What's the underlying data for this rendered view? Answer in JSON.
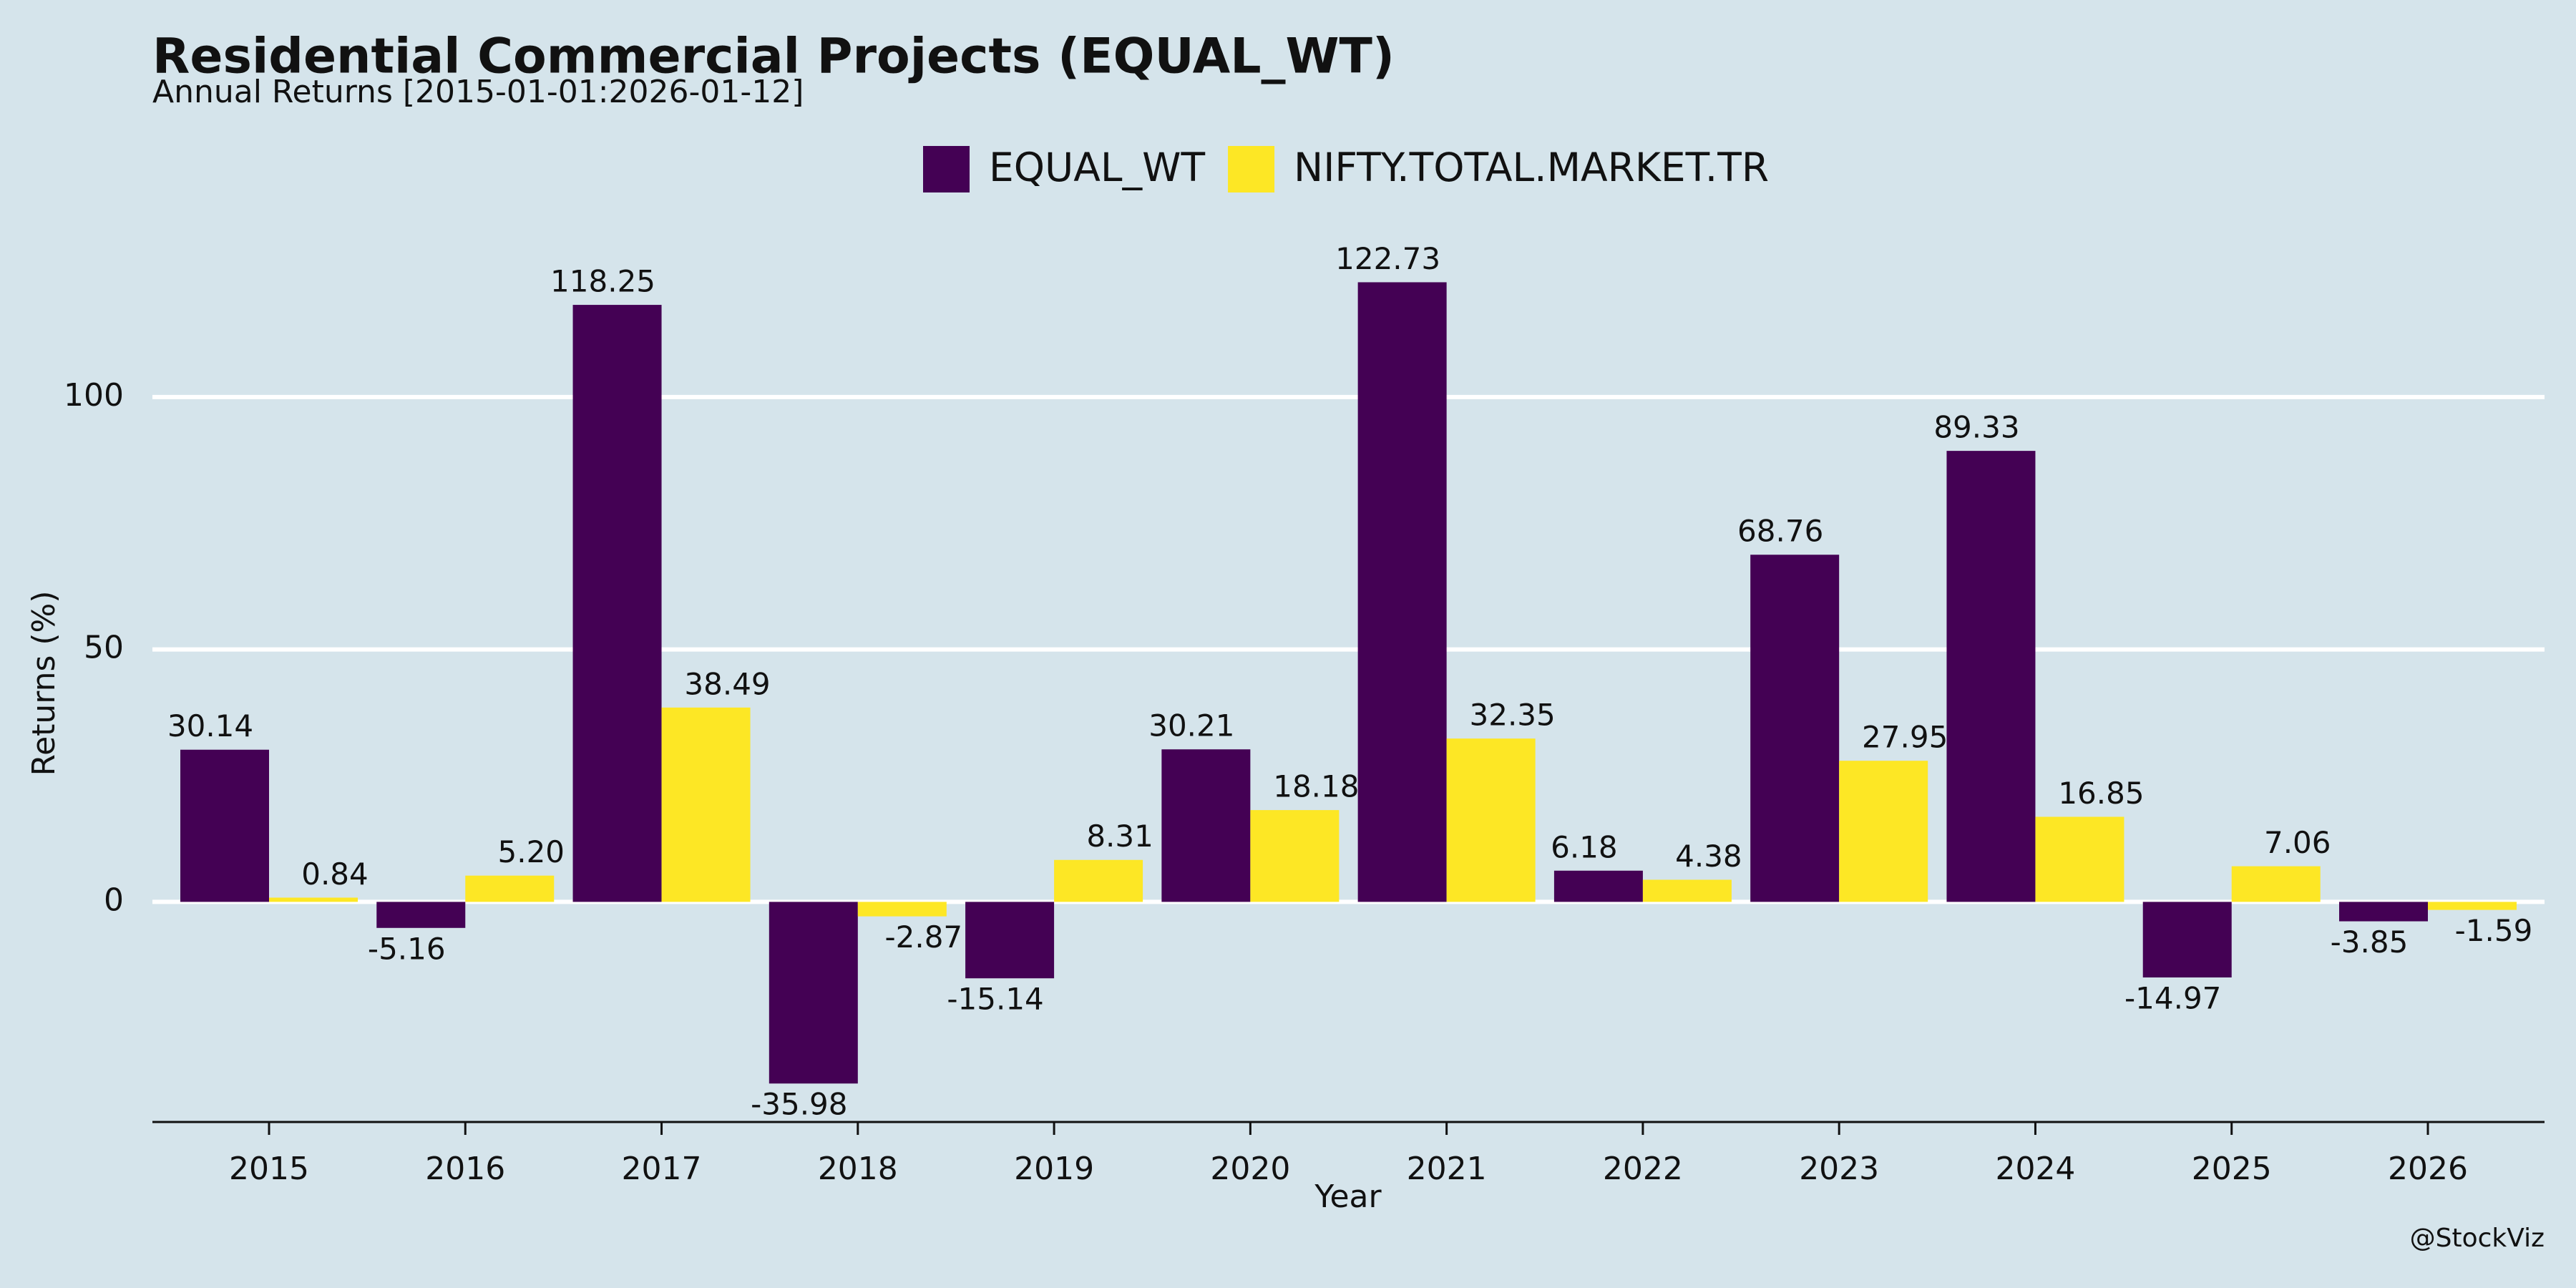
{
  "chart_data": {
    "type": "bar",
    "title": "Residential Commercial Projects (EQUAL_WT)",
    "subtitle": "Annual Returns [2015-01-01:2026-01-12]",
    "x_label": "Year",
    "y_label": "Returns (%)",
    "credit": "@StockViz",
    "categories": [
      "2015",
      "2016",
      "2017",
      "2018",
      "2019",
      "2020",
      "2021",
      "2022",
      "2023",
      "2024",
      "2025",
      "2026"
    ],
    "series": [
      {
        "name": "EQUAL_WT",
        "color": "#440154",
        "values": [
          30.14,
          -5.16,
          118.25,
          -35.98,
          -15.14,
          30.21,
          122.73,
          6.18,
          68.76,
          89.33,
          -14.97,
          -3.85
        ],
        "value_labels": [
          "30.14",
          "-5.16",
          "118.25",
          "-35.98",
          "-15.14",
          "30.21",
          "122.73",
          "6.18",
          "68.76",
          "89.33",
          "-14.97",
          "-3.85"
        ]
      },
      {
        "name": "NIFTY.TOTAL.MARKET.TR",
        "color": "#fde725",
        "values": [
          0.84,
          5.2,
          38.49,
          -2.87,
          8.31,
          18.18,
          32.35,
          4.38,
          27.95,
          16.85,
          7.06,
          -1.59
        ],
        "value_labels": [
          "0.84",
          "5.20",
          "38.49",
          "-2.87",
          "8.31",
          "18.18",
          "32.35",
          "4.38",
          "27.95",
          "16.85",
          "7.06",
          "-1.59"
        ]
      }
    ],
    "ylim": [
      -43.6,
      133
    ],
    "yticks": [
      0,
      50,
      100
    ],
    "grid": true,
    "legend": "top"
  }
}
